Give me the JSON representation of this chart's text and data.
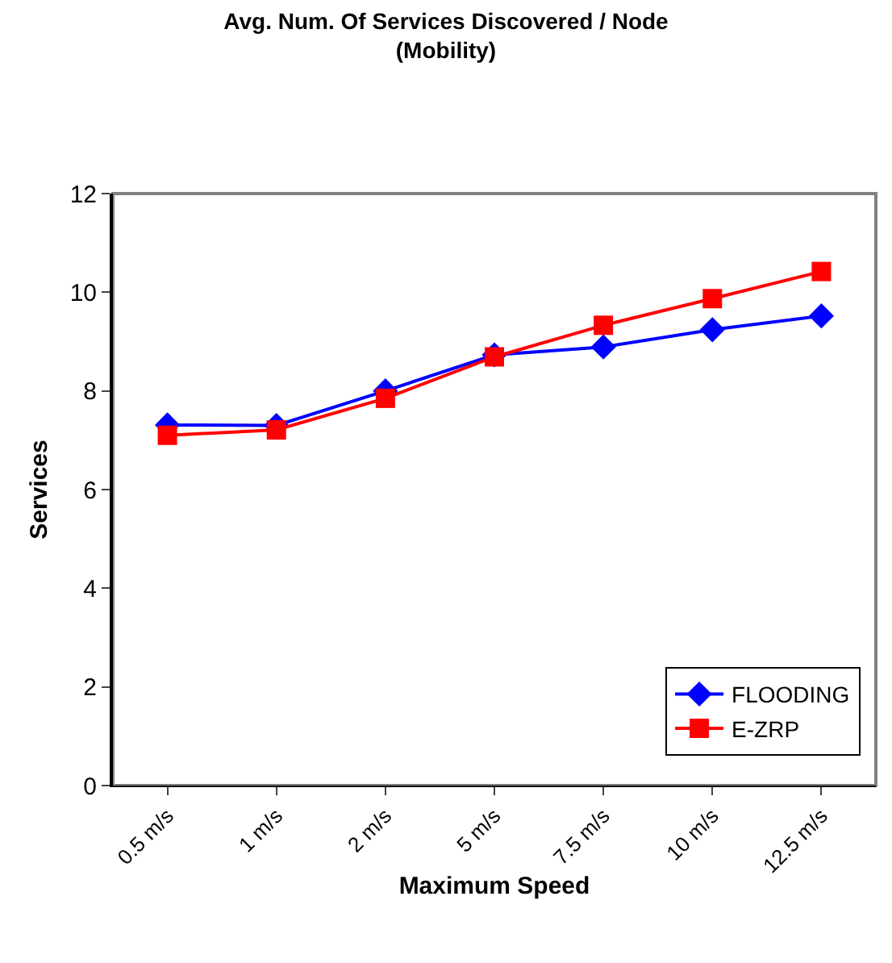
{
  "chart_data": {
    "type": "line",
    "title": "Avg. Num. Of Services Discovered / Node\n(Mobility)",
    "xlabel": "Maximum Speed",
    "ylabel": "Services",
    "categories": [
      "0.5 m/s",
      "1 m/s",
      "2 m/s",
      "5 m/s",
      "7.5 m/s",
      "10 m/s",
      "12.5 m/s"
    ],
    "series": [
      {
        "name": "FLOODING",
        "color": "#0000ff",
        "marker": "diamond",
        "values": [
          7.31,
          7.3,
          8.0,
          8.73,
          8.89,
          9.24,
          9.52
        ]
      },
      {
        "name": "E-ZRP",
        "color": "#ff0000",
        "marker": "square",
        "values": [
          7.1,
          7.21,
          7.85,
          8.69,
          9.33,
          9.87,
          10.42
        ]
      }
    ],
    "ylim": [
      0,
      12
    ],
    "yticks": [
      0,
      2,
      4,
      6,
      8,
      10,
      12
    ],
    "grid": false,
    "legend": "bottom right",
    "line_style": "solid"
  }
}
